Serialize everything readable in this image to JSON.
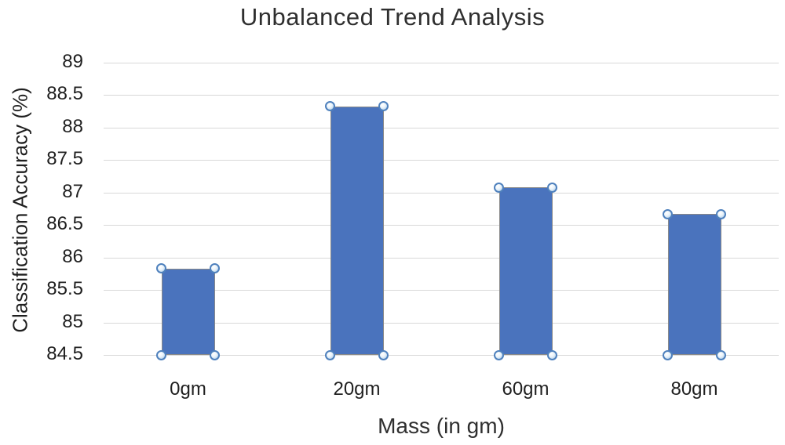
{
  "chart_data": {
    "type": "bar",
    "title": "Unbalanced Trend Analysis",
    "xlabel": "Mass (in gm)",
    "ylabel": "Classification Accuracy (%)",
    "categories": [
      "0gm",
      "20gm",
      "60gm",
      "80gm"
    ],
    "values": [
      85.83,
      88.33,
      87.08,
      86.67
    ],
    "ylim": [
      84.5,
      89
    ],
    "ytick_step": 0.5,
    "yticks": [
      "89",
      "88.5",
      "88",
      "87.5",
      "87",
      "86.5",
      "86",
      "85.5",
      "85",
      "84.5"
    ],
    "grid": true,
    "legend": false,
    "series_selected": true,
    "colors": {
      "bar_fill": "#4a73bd",
      "bar_border": "#8a8a8a",
      "gridline": "#d8d8d8",
      "text": "#2f2f2f",
      "selection_handle_border": "#4f81bd",
      "selection_handle_fill": "#9dc3e6",
      "background": "#ffffff"
    }
  }
}
